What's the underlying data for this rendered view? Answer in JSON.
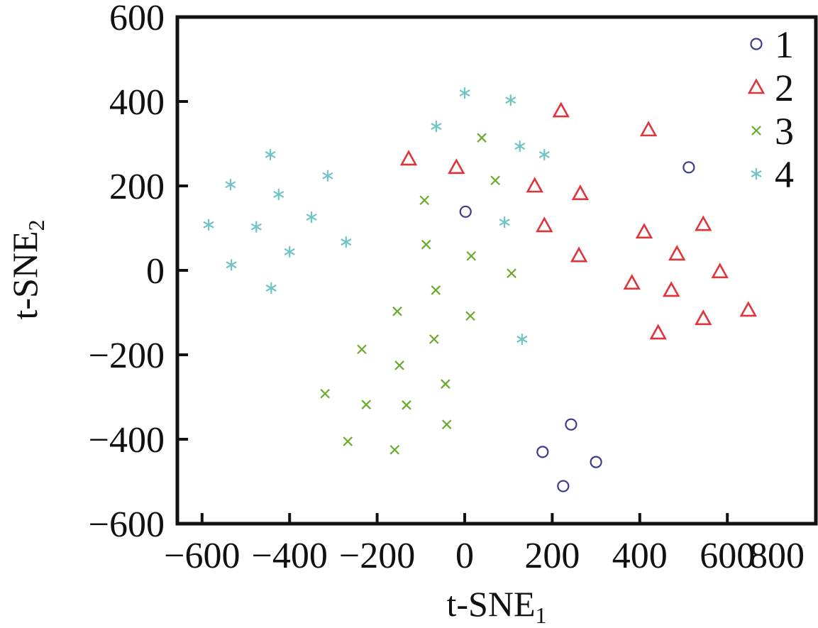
{
  "chart_data": {
    "type": "scatter",
    "title": "",
    "xlabel_main": "t-SNE",
    "xlabel_sub": "1",
    "ylabel_main": "t-SNE",
    "ylabel_sub": "2",
    "xlim": [
      -655,
      800
    ],
    "ylim": [
      -600,
      600
    ],
    "xticks": [
      -600,
      -400,
      -200,
      0,
      200,
      400,
      600,
      800
    ],
    "xtick_labels": [
      "−600",
      "−400",
      "−200",
      "0",
      "200",
      "400",
      "600",
      "800"
    ],
    "yticks": [
      600,
      400,
      200,
      0,
      -200,
      -400,
      -600
    ],
    "ytick_labels": [
      "600",
      "400",
      "200",
      "0",
      "−200",
      "−400",
      "−600"
    ],
    "grid": false,
    "legend_position": "top-right",
    "series": [
      {
        "name": "1",
        "marker": "circle",
        "color": "#3c3c8c",
        "points": [
          [
            512,
            244
          ],
          [
            2,
            139
          ],
          [
            243,
            -365
          ],
          [
            178,
            -430
          ],
          [
            300,
            -454
          ],
          [
            225,
            -511
          ]
        ]
      },
      {
        "name": "2",
        "marker": "triangle",
        "color": "#e0343a",
        "points": [
          [
            220,
            378
          ],
          [
            420,
            333
          ],
          [
            -128,
            264
          ],
          [
            -19,
            244
          ],
          [
            160,
            200
          ],
          [
            264,
            182
          ],
          [
            182,
            106
          ],
          [
            261,
            35
          ],
          [
            410,
            91
          ],
          [
            545,
            109
          ],
          [
            485,
            39
          ],
          [
            382,
            -30
          ],
          [
            472,
            -47
          ],
          [
            583,
            -3
          ],
          [
            442,
            -148
          ],
          [
            545,
            -114
          ],
          [
            648,
            -94
          ]
        ]
      },
      {
        "name": "3",
        "marker": "x",
        "color": "#6aaa2c",
        "points": [
          [
            39,
            314
          ],
          [
            70,
            213
          ],
          [
            -92,
            166
          ],
          [
            -88,
            61
          ],
          [
            15,
            34
          ],
          [
            107,
            -7
          ],
          [
            -66,
            -47
          ],
          [
            13,
            -108
          ],
          [
            -154,
            -97
          ],
          [
            -70,
            -163
          ],
          [
            -235,
            -187
          ],
          [
            -149,
            -225
          ],
          [
            -44,
            -269
          ],
          [
            -319,
            -292
          ],
          [
            -225,
            -318
          ],
          [
            -133,
            -319
          ],
          [
            -41,
            -365
          ],
          [
            -267,
            -405
          ],
          [
            -160,
            -425
          ]
        ]
      },
      {
        "name": "4",
        "marker": "asterisk",
        "color": "#70c4c4",
        "points": [
          [
            0,
            420
          ],
          [
            105,
            403
          ],
          [
            -65,
            341
          ],
          [
            126,
            294
          ],
          [
            182,
            274
          ],
          [
            -444,
            274
          ],
          [
            -313,
            224
          ],
          [
            -535,
            203
          ],
          [
            -425,
            180
          ],
          [
            -585,
            108
          ],
          [
            -476,
            103
          ],
          [
            -350,
            126
          ],
          [
            -400,
            44
          ],
          [
            -271,
            67
          ],
          [
            91,
            114
          ],
          [
            -533,
            13
          ],
          [
            -442,
            -42
          ],
          [
            131,
            -163
          ]
        ]
      }
    ]
  }
}
